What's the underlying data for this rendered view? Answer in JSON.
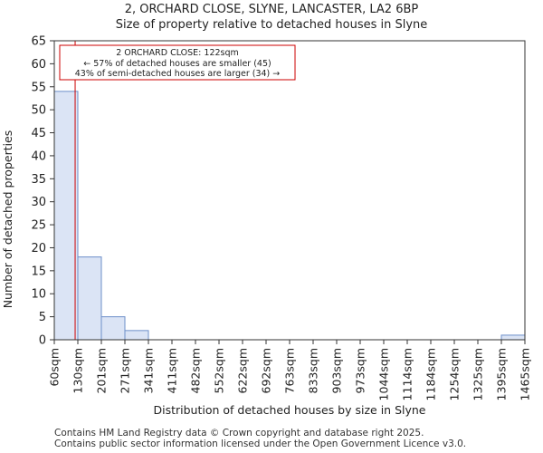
{
  "header": {
    "title": "2, ORCHARD CLOSE, SLYNE, LANCASTER, LA2 6BP",
    "subtitle": "Size of property relative to detached houses in Slyne"
  },
  "chart_data": {
    "type": "bar",
    "xlabel": "Distribution of detached houses by size in Slyne",
    "ylabel": "Number of detached properties",
    "ylim": [
      0,
      65
    ],
    "yticks": [
      0,
      5,
      10,
      15,
      20,
      25,
      30,
      35,
      40,
      45,
      50,
      55,
      60,
      65
    ],
    "bin_edges": [
      60,
      130,
      201,
      271,
      341,
      411,
      482,
      552,
      622,
      692,
      763,
      833,
      903,
      973,
      1044,
      1114,
      1184,
      1254,
      1325,
      1395,
      1465
    ],
    "tick_labels": [
      "60sqm",
      "130sqm",
      "201sqm",
      "271sqm",
      "341sqm",
      "411sqm",
      "482sqm",
      "552sqm",
      "622sqm",
      "692sqm",
      "763sqm",
      "833sqm",
      "903sqm",
      "973sqm",
      "1044sqm",
      "1114sqm",
      "1184sqm",
      "1254sqm",
      "1325sqm",
      "1395sqm",
      "1465sqm"
    ],
    "values": [
      54,
      18,
      5,
      2,
      0,
      0,
      0,
      0,
      0,
      0,
      0,
      0,
      0,
      0,
      0,
      0,
      0,
      0,
      0,
      1
    ],
    "bar_color": "#dbe4f5",
    "bar_edge": "#6d8fc9",
    "marker": {
      "value": 122,
      "color": "#cc0000"
    },
    "annotation": {
      "line1": "2 ORCHARD CLOSE: 122sqm",
      "line2": "← 57% of detached houses are smaller (45)",
      "line3": "43% of semi-detached houses are larger (34) →"
    }
  },
  "footer": {
    "line1": "Contains HM Land Registry data © Crown copyright and database right 2025.",
    "line2": "Contains public sector information licensed under the Open Government Licence v3.0."
  }
}
